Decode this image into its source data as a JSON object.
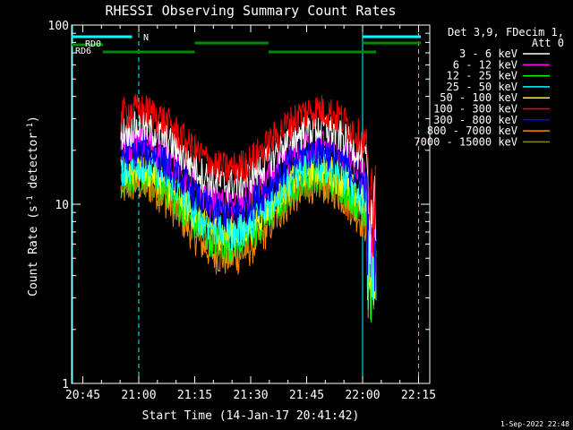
{
  "chart_data": {
    "type": "line",
    "title": "RHESSI Observing Summary Count Rates",
    "xlabel": "Start Time (14-Jan-17 20:41:42)",
    "ylabel": "Count Rate (s",
    "ylabel_sup": "-1",
    "ylabel_mid": " detector",
    "ylabel_sup2": "-1",
    "ylabel_end": ")",
    "x_range_minutes": [
      20.7,
      22.3
    ],
    "x_ticks": [
      {
        "label": "20:45",
        "t": 20.75
      },
      {
        "label": "21:00",
        "t": 21.0
      },
      {
        "label": "21:15",
        "t": 21.25
      },
      {
        "label": "21:30",
        "t": 21.5
      },
      {
        "label": "21:45",
        "t": 21.75
      },
      {
        "label": "22:00",
        "t": 22.0
      },
      {
        "label": "22:15",
        "t": 22.25
      }
    ],
    "y_scale": "log",
    "ylim": [
      1,
      100
    ],
    "y_ticks": [
      {
        "label": "1",
        "v": 1
      },
      {
        "label": "10",
        "v": 10
      },
      {
        "label": "100",
        "v": 100
      }
    ],
    "legend_header": [
      "Det 3,9, FDecim 1,",
      "Att 0"
    ],
    "series": [
      {
        "name": "3 - 6 keV",
        "color": "#ffffff",
        "level_peak": 27,
        "level_min": 13
      },
      {
        "name": "6 - 12 keV",
        "color": "#ff00ff",
        "level_peak": 22,
        "level_min": 10
      },
      {
        "name": "12 - 25 keV",
        "color": "#00ff00",
        "level_peak": 15,
        "level_min": 6
      },
      {
        "name": "25 - 50 keV",
        "color": "#00ffff",
        "level_peak": 17,
        "level_min": 7
      },
      {
        "name": "50 - 100 keV",
        "color": "#ffff00",
        "level_peak": 16,
        "level_min": 7
      },
      {
        "name": "100 - 300 keV",
        "color": "#ff0000",
        "level_peak": 34,
        "level_min": 16
      },
      {
        "name": "300 - 800 keV",
        "color": "#0000ff",
        "level_peak": 20,
        "level_min": 9
      },
      {
        "name": "800 - 7000 keV",
        "color": "#ff8800",
        "level_peak": 13,
        "level_min": 5
      },
      {
        "name": "7000 - 15000 keV",
        "color": "#888800",
        "level_peak": 14,
        "level_min": 6
      }
    ],
    "flags": [
      {
        "label": "N",
        "color": "#00ffff"
      },
      {
        "label": "RD0",
        "color": "#008800"
      },
      {
        "label": "RD6",
        "color": "#008800"
      }
    ],
    "footer_date": "1-Sep-2022 22:48"
  }
}
